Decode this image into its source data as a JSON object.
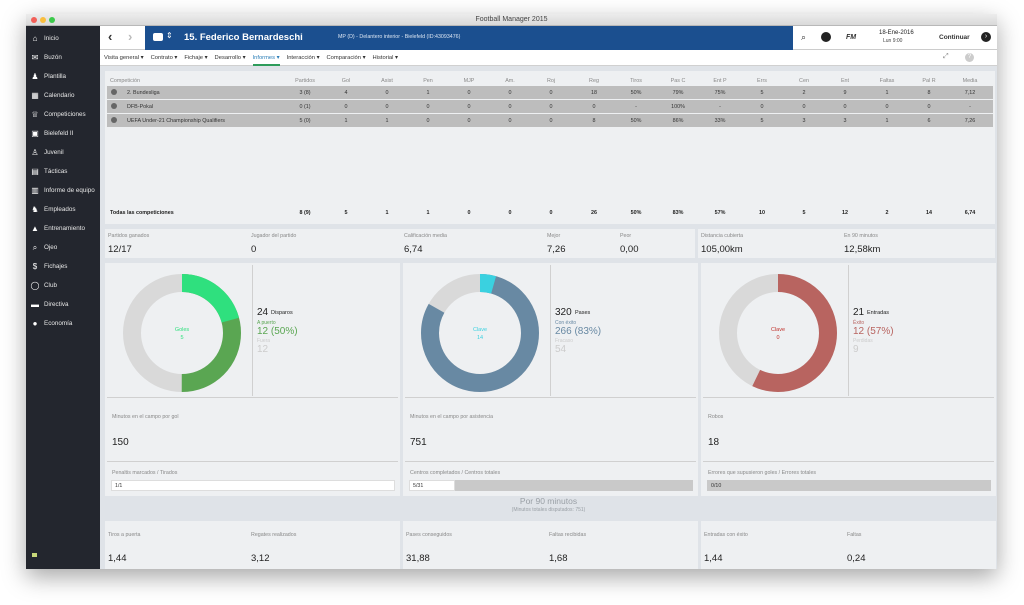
{
  "window": {
    "title": "Football Manager 2015"
  },
  "sidebar": {
    "items": [
      {
        "icon": "home-icon",
        "label": "Inicio"
      },
      {
        "icon": "inbox-icon",
        "label": "Buzón"
      },
      {
        "icon": "squad-icon",
        "label": "Plantilla"
      },
      {
        "icon": "calendar-icon",
        "label": "Calendario"
      },
      {
        "icon": "trophy-icon",
        "label": "Competiciones"
      },
      {
        "icon": "shirt-icon",
        "label": "Bielefeld II"
      },
      {
        "icon": "youth-icon",
        "label": "Juvenil"
      },
      {
        "icon": "tactics-icon",
        "label": "Tácticas"
      },
      {
        "icon": "report-icon",
        "label": "Informe de equipo"
      },
      {
        "icon": "staff-icon",
        "label": "Empleados"
      },
      {
        "icon": "training-icon",
        "label": "Entrenamiento"
      },
      {
        "icon": "scout-icon",
        "label": "Ojeo"
      },
      {
        "icon": "transfers-icon",
        "label": "Fichajes"
      },
      {
        "icon": "club-icon",
        "label": "Club"
      },
      {
        "icon": "board-icon",
        "label": "Directiva"
      },
      {
        "icon": "finance-icon",
        "label": "Economía"
      }
    ]
  },
  "header": {
    "player_name": "15. Federico Bernardeschi",
    "player_sub": "MP (D) - Delantero interior - Bielefeld (ID:43093476)",
    "date": "18-Ene-2016",
    "time": "Lun 9:00",
    "continue": "Continuar",
    "brand": "FM"
  },
  "subnav": {
    "tabs": [
      "Visita general",
      "Contrato",
      "Fichaje",
      "Desarrollo",
      "Informes",
      "Interacción",
      "Comparación",
      "Historial"
    ],
    "active": 4
  },
  "stats_table": {
    "headers": [
      "Competición",
      "Partidos",
      "Gol",
      "Asist",
      "Pen",
      "MJP",
      "Am.",
      "Roj",
      "Reg",
      "Tiros",
      "Pas C",
      "Ent P",
      "Errs",
      "Cen",
      "Ent",
      "Faltas",
      "Pal R",
      "Media"
    ],
    "rows": [
      [
        "2. Bundesliga",
        "3 (8)",
        "4",
        "0",
        "1",
        "0",
        "0",
        "0",
        "18",
        "50%",
        "79%",
        "75%",
        "5",
        "2",
        "9",
        "1",
        "8",
        "7,12"
      ],
      [
        "DFB-Pokal",
        "0 (1)",
        "0",
        "0",
        "0",
        "0",
        "0",
        "0",
        "0",
        "-",
        "100%",
        "-",
        "0",
        "0",
        "0",
        "0",
        "0",
        "-"
      ],
      [
        "UEFA Under-21 Championship Qualifiers",
        "5 (0)",
        "1",
        "1",
        "0",
        "0",
        "0",
        "0",
        "8",
        "50%",
        "86%",
        "33%",
        "5",
        "3",
        "3",
        "1",
        "6",
        "7,26"
      ]
    ],
    "total": [
      "Todas las competiciones",
      "8 (9)",
      "5",
      "1",
      "1",
      "0",
      "0",
      "0",
      "26",
      "50%",
      "83%",
      "57%",
      "10",
      "5",
      "12",
      "2",
      "14",
      "6,74"
    ]
  },
  "summary": [
    {
      "label": "Partidos ganados",
      "value": "12/17"
    },
    {
      "label": "Jugador del partido",
      "value": "0"
    },
    {
      "label": "Calificación media",
      "value": "6,74"
    },
    {
      "label": "Mejor",
      "value": "7,26"
    },
    {
      "label": "Peor",
      "value": "0,00"
    },
    {
      "label": "Distancia cubierta",
      "value": "105,00km"
    },
    {
      "label": "En 90 minutos",
      "value": "12,58km"
    }
  ],
  "panels": [
    {
      "center_label": "Goles",
      "center_value": "5",
      "center_color": "#2fe07e",
      "total": "24",
      "total_label": "Disparos",
      "sub1_label": "A puerto",
      "sub1_value": "12 (50%)",
      "sub2_label": "Fuera",
      "sub2_value": "12",
      "accent": "#5aa652",
      "fraction": 0.5,
      "highlight": 0.208,
      "highlight_color": "#2fe07e",
      "metric_label": "Minutos en el campo por gol",
      "metric_value": "150",
      "bar_label": "Penaltis marcados / Tirados",
      "bar_value": "1/1",
      "bar_fraction": 1
    },
    {
      "center_label": "Clave",
      "center_value": "14",
      "center_color": "#3ad1e0",
      "total": "320",
      "total_label": "Pases",
      "sub1_label": "Con éxito",
      "sub1_value": "266 (83%)",
      "sub2_label": "Fracaso",
      "sub2_value": "54",
      "accent": "#6889a3",
      "fraction": 0.831,
      "highlight": 0.044,
      "highlight_color": "#3ad1e0",
      "metric_label": "Minutos en el campo por asistencia",
      "metric_value": "751",
      "bar_label": "Centros completados / Centros totales",
      "bar_value": "5/31",
      "bar_fraction": 0.161
    },
    {
      "center_label": "Clave",
      "center_value": "0",
      "center_color": "#c0302a",
      "total": "21",
      "total_label": "Entradas",
      "sub1_label": "Éxito",
      "sub1_value": "12 (57%)",
      "sub2_label": "Perdidas",
      "sub2_value": "9",
      "accent": "#b86460",
      "fraction": 0.571,
      "highlight": 0,
      "highlight_color": "#c0302a",
      "metric_label": "Robos",
      "metric_value": "18",
      "bar_label": "Errores que supusieron goles / Errores totales",
      "bar_value": "0/10",
      "bar_fraction": 0
    }
  ],
  "per90": {
    "title": "Por 90 minutos",
    "subtitle": "(Minutos totales disputados: 751)",
    "items": [
      {
        "label": "Tiros a puerta",
        "value": "1,44"
      },
      {
        "label": "Regates realizados",
        "value": "3,12"
      },
      {
        "label": "Pases conseguidos",
        "value": "31,88"
      },
      {
        "label": "Faltas recibidas",
        "value": "1,68"
      },
      {
        "label": "Entradas con éxito",
        "value": "1,44"
      },
      {
        "label": "Faltas",
        "value": "0,24"
      }
    ]
  }
}
